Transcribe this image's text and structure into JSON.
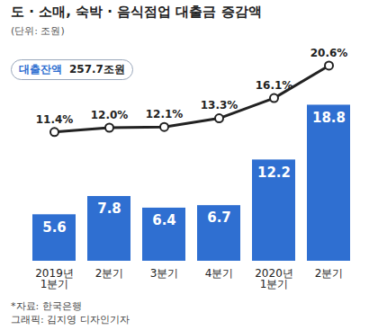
{
  "chart_data": {
    "type": "bar",
    "title": "도 · 소매, 숙박 · 음식점업 대출금 증감액",
    "subtitle": "(단위: 조원)",
    "annotations": [
      "대출잔액",
      "257.7조원"
    ],
    "categories": [
      "2019년 1분기",
      "2분기",
      "3분기",
      "4분기",
      "2020년 1분기",
      "2분기"
    ],
    "ylim": [
      0,
      26
    ],
    "y2lim": [
      -6.5,
      23.4
    ],
    "tick_labels": "x",
    "data_labels": true,
    "series": [
      {
        "type": "bar",
        "color": "#2f6fd1",
        "values": [
          5.6,
          7.8,
          6.4,
          6.7,
          12.2,
          18.8
        ]
      },
      {
        "type": "line",
        "axis": "y2",
        "color": "#222222",
        "marker": "circle",
        "values": [
          11.4,
          12.0,
          12.1,
          13.3,
          16.1,
          20.6
        ],
        "value_labels": [
          "11.4%",
          "12.0%",
          "12.1%",
          "13.3%",
          "16.1%",
          "20.6%"
        ]
      }
    ],
    "notes": [
      "*자료: 한국은행",
      "그래픽: 김지영 디자인기자"
    ]
  }
}
